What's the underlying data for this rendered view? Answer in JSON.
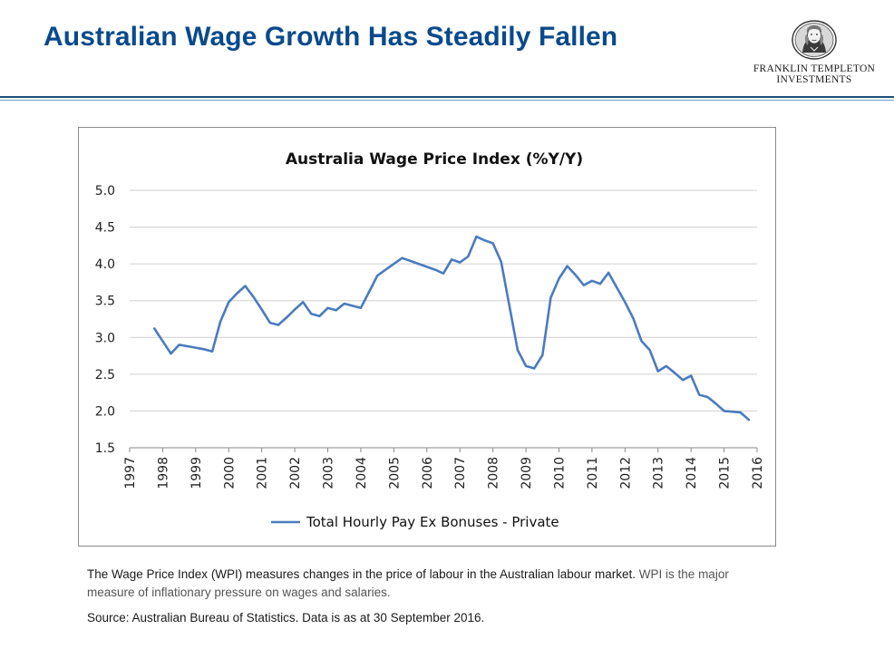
{
  "slide": {
    "title": "Australian Wage Growth Has Steadily Fallen"
  },
  "logo": {
    "line1": "FRANKLIN TEMPLETON",
    "line2": "INVESTMENTS",
    "icon": "benjamin-franklin-portrait-icon"
  },
  "colors": {
    "title": "#0a4a8c",
    "series": "#4a7bbf",
    "rule": "#1f4e7a"
  },
  "chart_data": {
    "type": "line",
    "title": "Australia Wage Price Index (%Y/Y)",
    "xlabel": "",
    "ylabel": "",
    "xlim": [
      1997,
      2016
    ],
    "ylim": [
      1.5,
      5.0
    ],
    "yticks": [
      "1.5",
      "2.0",
      "2.5",
      "3.0",
      "3.5",
      "4.0",
      "4.5",
      "5.0"
    ],
    "xticks": [
      "1997",
      "1998",
      "1999",
      "2000",
      "2001",
      "2002",
      "2003",
      "2004",
      "2005",
      "2006",
      "2007",
      "2008",
      "2009",
      "2010",
      "2011",
      "2012",
      "2013",
      "2014",
      "2015",
      "2016"
    ],
    "grid": "horizontal",
    "legend_position": "bottom",
    "series": [
      {
        "name": "Total Hourly Pay Ex Bonuses - Private",
        "x": [
          1997.75,
          1998.0,
          1998.25,
          1998.5,
          1998.75,
          1999.0,
          1999.25,
          1999.5,
          1999.75,
          2000.0,
          2000.25,
          2000.5,
          2000.75,
          2001.0,
          2001.25,
          2001.5,
          2001.75,
          2002.0,
          2002.25,
          2002.5,
          2002.75,
          2003.0,
          2003.25,
          2003.5,
          2003.75,
          2004.0,
          2004.25,
          2004.5,
          2004.75,
          2005.0,
          2005.25,
          2005.5,
          2005.75,
          2006.0,
          2006.25,
          2006.5,
          2006.75,
          2007.0,
          2007.25,
          2007.5,
          2007.75,
          2008.0,
          2008.25,
          2008.5,
          2008.75,
          2009.0,
          2009.25,
          2009.5,
          2009.75,
          2010.0,
          2010.25,
          2010.5,
          2010.75,
          2011.0,
          2011.25,
          2011.5,
          2011.75,
          2012.0,
          2012.25,
          2012.5,
          2012.75,
          2013.0,
          2013.25,
          2013.5,
          2013.75,
          2014.0,
          2014.25,
          2014.5,
          2014.75,
          2015.0,
          2015.25,
          2015.5,
          2015.75
        ],
        "y": [
          3.12,
          2.95,
          2.78,
          2.9,
          2.88,
          2.86,
          2.84,
          2.81,
          3.22,
          3.48,
          3.6,
          3.7,
          3.55,
          3.38,
          3.2,
          3.17,
          3.27,
          3.38,
          3.48,
          3.32,
          3.29,
          3.4,
          3.37,
          3.46,
          3.43,
          3.4,
          3.62,
          3.84,
          3.92,
          4.0,
          4.08,
          4.04,
          4.0,
          3.96,
          3.92,
          3.87,
          4.06,
          4.02,
          4.1,
          4.37,
          4.32,
          4.28,
          4.03,
          3.43,
          2.83,
          2.61,
          2.58,
          2.76,
          3.54,
          3.8,
          3.97,
          3.85,
          3.71,
          3.77,
          3.73,
          3.88,
          3.68,
          3.48,
          3.26,
          2.95,
          2.83,
          2.54,
          2.61,
          2.52,
          2.42,
          2.48,
          2.22,
          2.19,
          2.1,
          2.0,
          1.99,
          1.98,
          1.88
        ]
      }
    ]
  },
  "description": {
    "part1": "The Wage Price Index (WPI) measures changes in the price of labour in the Australian labour market.",
    "part2": " WPI is the major measure of inflationary pressure on wages and salaries."
  },
  "source": "Source: Australian Bureau of Statistics.  Data is as at 30 September 2016."
}
